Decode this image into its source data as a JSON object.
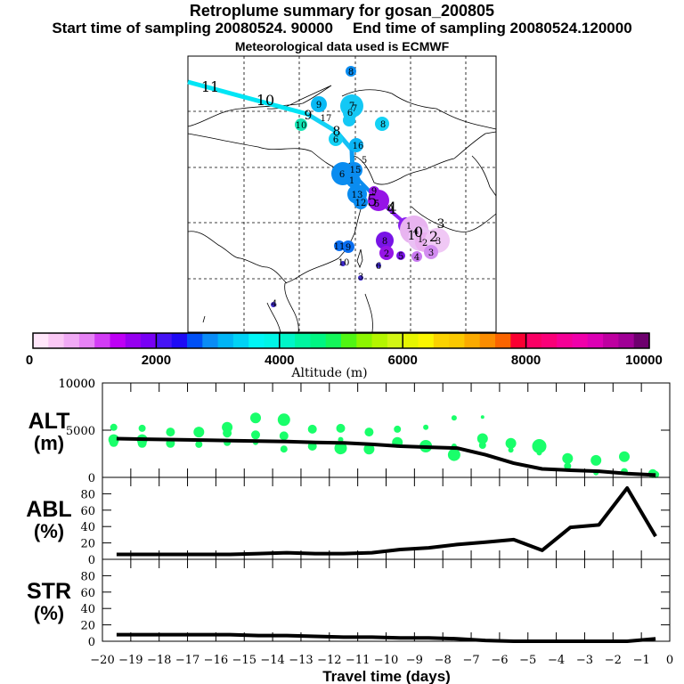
{
  "header": {
    "title": "Retroplume summary for gosan_200805",
    "start_time": "Start time of sampling 20080524. 90000",
    "end_time": "End time of sampling 20080524.120000",
    "met_data": "Meteorological data used is ECMWF"
  },
  "colors": {
    "plume_dots": "#19ff6a",
    "line": "#000000",
    "trajectory_high": "#00e5f5",
    "trajectory_mid": "#0a8cf0",
    "trajectory_low": "#8a1ef0"
  },
  "map": {
    "description": "Retroplume trajectory map over East Asia with numbered cluster centroids (days back) colored by altitude",
    "trajectory_labels": [
      {
        "label": "11",
        "color": "#00e5f5"
      },
      {
        "label": "10",
        "color": "#00e5f5"
      },
      {
        "label": "9",
        "color": "#00e5f5"
      },
      {
        "label": "8",
        "color": "#00d0f5"
      },
      {
        "label": "7",
        "color": "#0abaf5"
      },
      {
        "label": "6",
        "color": "#0a8cf0"
      },
      {
        "label": "5",
        "color": "#8a1ef0"
      },
      {
        "label": "4",
        "color": "#c28af0"
      },
      {
        "label": "3",
        "color": "#f0c8f5"
      },
      {
        "label": "2",
        "color": "#f0c8f5"
      },
      {
        "label": "1",
        "color": "#e8b4f0"
      },
      {
        "label": "0",
        "color": "#e8b4f0"
      }
    ],
    "cluster_labels": [
      "8",
      "9",
      "7",
      "6",
      "7",
      "10",
      "17",
      "8",
      "6",
      "16",
      "5",
      "6",
      "15",
      "1",
      "13",
      "12",
      "5",
      "0",
      "1",
      "4",
      "1",
      "2",
      "3",
      "8",
      "2",
      "5",
      "4",
      "3",
      "9",
      "11",
      "10",
      "6",
      "3",
      "4",
      "9"
    ]
  },
  "colorbar": {
    "label": "Altitude (m)",
    "ticks": [
      "0",
      "2000",
      "4000",
      "6000",
      "8000",
      "10000"
    ],
    "range": [
      0,
      10000
    ],
    "colors": [
      "#ffe6fa",
      "#fac8f5",
      "#f0aaf5",
      "#e682f5",
      "#d23cf5",
      "#be00f5",
      "#9600f0",
      "#7800f5",
      "#4614f5",
      "#1e0af5",
      "#0050f5",
      "#0a8cf5",
      "#00b4f5",
      "#00d2f5",
      "#00f5f5",
      "#00f5e6",
      "#00f5c8",
      "#00f5a0",
      "#00f582",
      "#14f55a",
      "#50f514",
      "#8cf500",
      "#b4f500",
      "#d2f514",
      "#e6f500",
      "#faf500",
      "#fad200",
      "#fac800",
      "#faaa00",
      "#fa8c00",
      "#fa6400",
      "#fa0032",
      "#fa0064",
      "#fa0078",
      "#f50096",
      "#f000aa",
      "#dc00b4",
      "#be00a0",
      "#a00096",
      "#6e006e"
    ]
  },
  "chart_data": [
    {
      "type": "line",
      "panel": "ALT",
      "ylabel": "ALT\n(m)",
      "ylabel_line1": "ALT",
      "ylabel_line2": "(m)",
      "xlabel": "Travel time (days)",
      "xlim": [
        -20,
        0
      ],
      "ylim": [
        0,
        10000
      ],
      "yticks": [
        "0",
        "5000",
        "10000"
      ],
      "grid": false,
      "series": [
        {
          "name": "mean altitude",
          "x": [
            -19.5,
            -18.5,
            -17.5,
            -16.5,
            -15.5,
            -14.5,
            -13.5,
            -12.5,
            -11.5,
            -10.5,
            -9.5,
            -8.5,
            -7.5,
            -6.5,
            -5.5,
            -4.5,
            -3.5,
            -2.5,
            -1.5,
            -0.5
          ],
          "y": [
            4100,
            4050,
            4000,
            3950,
            3900,
            3850,
            3800,
            3700,
            3650,
            3500,
            3300,
            3200,
            3100,
            2400,
            1500,
            900,
            750,
            650,
            400,
            250
          ]
        }
      ],
      "scatter": {
        "name": "plume cluster altitudes",
        "points": [
          [
            -19.6,
            5300
          ],
          [
            -19.6,
            4000
          ],
          [
            -19.6,
            3700
          ],
          [
            -18.6,
            5200
          ],
          [
            -18.6,
            4000
          ],
          [
            -18.6,
            3600
          ],
          [
            -17.6,
            4800
          ],
          [
            -17.6,
            3600
          ],
          [
            -16.6,
            4800
          ],
          [
            -16.6,
            3500
          ],
          [
            -15.6,
            5300
          ],
          [
            -15.6,
            4700
          ],
          [
            -15.6,
            3700
          ],
          [
            -14.6,
            6300
          ],
          [
            -14.6,
            4500
          ],
          [
            -14.6,
            3700
          ],
          [
            -13.6,
            6100
          ],
          [
            -13.6,
            4400
          ],
          [
            -13.6,
            3000
          ],
          [
            -12.6,
            5100
          ],
          [
            -12.6,
            3300
          ],
          [
            -11.6,
            5200
          ],
          [
            -11.6,
            4000
          ],
          [
            -11.6,
            3100
          ],
          [
            -10.6,
            4800
          ],
          [
            -10.6,
            3000
          ],
          [
            -9.6,
            5100
          ],
          [
            -9.6,
            3700
          ],
          [
            -8.6,
            5300
          ],
          [
            -8.6,
            3300
          ],
          [
            -7.6,
            6300
          ],
          [
            -7.6,
            3300
          ],
          [
            -7.6,
            2400
          ],
          [
            -6.6,
            6400
          ],
          [
            -6.6,
            4100
          ],
          [
            -6.6,
            3400
          ],
          [
            -5.6,
            3600
          ],
          [
            -5.6,
            2900
          ],
          [
            -4.6,
            3300
          ],
          [
            -4.6,
            2600
          ],
          [
            -3.6,
            2000
          ],
          [
            -3.6,
            1200
          ],
          [
            -2.6,
            1800
          ],
          [
            -2.6,
            500
          ],
          [
            -1.6,
            2200
          ],
          [
            -1.6,
            600
          ],
          [
            -0.6,
            400
          ],
          [
            -0.5,
            300
          ]
        ]
      }
    },
    {
      "type": "line",
      "panel": "ABL",
      "ylabel_line1": "ABL",
      "ylabel_line2": "(%)",
      "xlim": [
        -20,
        0
      ],
      "ylim": [
        0,
        100
      ],
      "yticks": [
        "0",
        "20",
        "40",
        "60",
        "80"
      ],
      "grid": false,
      "series": [
        {
          "name": "ABL fraction",
          "x": [
            -19.5,
            -18.5,
            -17.5,
            -16.5,
            -15.5,
            -14.5,
            -13.5,
            -12.5,
            -11.5,
            -10.5,
            -9.5,
            -8.5,
            -7.5,
            -6.5,
            -5.5,
            -4.5,
            -3.5,
            -2.5,
            -1.5,
            -0.5
          ],
          "y": [
            6,
            6,
            6,
            6,
            6,
            7,
            8,
            7,
            7,
            8,
            12,
            14,
            18,
            21,
            24,
            11,
            39,
            42,
            87,
            28
          ]
        }
      ]
    },
    {
      "type": "line",
      "panel": "STR",
      "ylabel_line1": "STR",
      "ylabel_line2": "(%)",
      "xlabel": "Travel time (days)",
      "xlim": [
        -20,
        0
      ],
      "ylim": [
        0,
        100
      ],
      "yticks": [
        "0",
        "20",
        "40",
        "60",
        "80"
      ],
      "xticks": [
        "−20",
        "−19",
        "−18",
        "−17",
        "−16",
        "−15",
        "−14",
        "−13",
        "−12",
        "−11",
        "−10",
        "−9",
        "−8",
        "−7",
        "−6",
        "−5",
        "−4",
        "−3",
        "−2",
        "−1",
        "0"
      ],
      "grid": false,
      "series": [
        {
          "name": "stratospheric fraction",
          "x": [
            -19.5,
            -18.5,
            -17.5,
            -16.5,
            -15.5,
            -14.5,
            -13.5,
            -12.5,
            -11.5,
            -10.5,
            -9.5,
            -8.5,
            -7.5,
            -6.5,
            -5.5,
            -4.5,
            -3.5,
            -2.5,
            -1.5,
            -0.5
          ],
          "y": [
            8,
            8,
            8,
            8,
            8,
            7,
            7,
            6,
            5,
            5,
            4,
            4,
            3,
            1,
            0,
            0,
            0,
            0,
            0,
            3
          ]
        }
      ]
    }
  ]
}
